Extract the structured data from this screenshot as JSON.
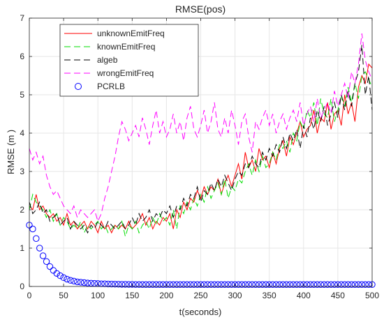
{
  "chart_data": {
    "type": "line",
    "title": "RMSE(pos)",
    "xlabel": "t(seconds)",
    "ylabel": "RMSE (m )",
    "xlim": [
      0,
      500
    ],
    "ylim": [
      0,
      7
    ],
    "xticks": [
      "0",
      "50",
      "100",
      "150",
      "200",
      "250",
      "300",
      "350",
      "400",
      "450",
      "500"
    ],
    "yticks": [
      "0",
      "1",
      "2",
      "3",
      "4",
      "5",
      "6",
      "7"
    ],
    "grid": true,
    "legend_position": "top-left",
    "x": [
      0,
      5,
      10,
      15,
      20,
      25,
      30,
      35,
      40,
      45,
      50,
      55,
      60,
      65,
      70,
      75,
      80,
      85,
      90,
      95,
      100,
      105,
      110,
      115,
      120,
      125,
      130,
      135,
      140,
      145,
      150,
      155,
      160,
      165,
      170,
      175,
      180,
      185,
      190,
      195,
      200,
      205,
      210,
      215,
      220,
      225,
      230,
      235,
      240,
      245,
      250,
      255,
      260,
      265,
      270,
      275,
      280,
      285,
      290,
      295,
      300,
      305,
      310,
      315,
      320,
      325,
      330,
      335,
      340,
      345,
      350,
      355,
      360,
      365,
      370,
      375,
      380,
      385,
      390,
      395,
      400,
      405,
      410,
      415,
      420,
      425,
      430,
      435,
      440,
      445,
      450,
      455,
      460,
      465,
      470,
      475,
      480,
      485,
      490,
      495,
      500
    ],
    "series": [
      {
        "name": "unknownEmitFreq",
        "color": "#ff0000",
        "dash": "solid",
        "marker": "none",
        "values": [
          2.1,
          2.0,
          2.4,
          2.0,
          2.1,
          1.9,
          1.8,
          1.9,
          1.7,
          1.8,
          1.6,
          1.9,
          1.6,
          1.7,
          1.5,
          1.6,
          1.7,
          1.5,
          1.7,
          1.6,
          1.4,
          1.7,
          1.5,
          1.6,
          1.4,
          1.6,
          1.5,
          1.6,
          1.5,
          1.7,
          1.5,
          1.6,
          1.7,
          1.9,
          1.6,
          1.8,
          1.5,
          1.7,
          1.6,
          1.8,
          1.7,
          1.9,
          1.5,
          2.0,
          1.8,
          2.2,
          2.0,
          2.3,
          2.2,
          2.5,
          2.3,
          2.6,
          2.4,
          2.6,
          2.5,
          2.8,
          2.4,
          2.7,
          2.9,
          2.6,
          2.9,
          3.2,
          2.8,
          3.5,
          3.1,
          3.3,
          3.0,
          3.6,
          3.3,
          3.4,
          3.1,
          3.5,
          3.2,
          3.6,
          3.8,
          3.4,
          3.9,
          3.7,
          4.0,
          4.3,
          3.9,
          4.1,
          4.2,
          4.6,
          4.0,
          4.4,
          4.3,
          4.8,
          4.1,
          4.5,
          4.6,
          4.2,
          5.0,
          4.5,
          4.8,
          4.3,
          5.2,
          5.5,
          5.3,
          5.8,
          5.7
        ]
      },
      {
        "name": "knownEmitFreq",
        "color": "#00dd00",
        "dash": "long-dash",
        "marker": "none",
        "values": [
          2.0,
          2.4,
          2.2,
          2.1,
          2.0,
          1.8,
          2.0,
          1.7,
          1.9,
          1.6,
          1.8,
          1.7,
          1.5,
          1.6,
          1.5,
          1.7,
          1.4,
          1.6,
          1.5,
          1.6,
          1.7,
          1.5,
          1.6,
          1.4,
          1.5,
          1.6,
          1.5,
          1.7,
          1.3,
          1.6,
          1.5,
          1.7,
          1.4,
          1.6,
          1.7,
          1.5,
          1.8,
          1.6,
          1.9,
          1.7,
          1.8,
          1.6,
          2.0,
          1.5,
          2.1,
          1.9,
          2.2,
          2.0,
          2.3,
          2.1,
          2.4,
          2.2,
          2.6,
          2.3,
          2.5,
          2.7,
          2.4,
          2.8,
          2.3,
          2.6,
          2.5,
          2.8,
          2.7,
          3.0,
          3.2,
          2.9,
          3.3,
          3.0,
          3.4,
          3.1,
          3.2,
          3.5,
          3.3,
          3.7,
          3.6,
          3.8,
          3.5,
          4.0,
          3.8,
          4.3,
          4.1,
          4.6,
          4.4,
          4.8,
          4.2,
          4.9,
          4.5,
          4.4,
          4.9,
          4.3,
          4.6,
          5.0,
          4.7,
          5.2,
          4.8,
          5.3,
          4.9,
          5.5,
          5.6,
          5.4,
          5.2
        ]
      },
      {
        "name": "algeb",
        "color": "#000000",
        "dash": "long-dash",
        "marker": "none",
        "values": [
          2.2,
          1.9,
          2.0,
          2.2,
          1.9,
          2.0,
          1.7,
          1.8,
          1.9,
          1.6,
          1.7,
          1.8,
          1.5,
          1.7,
          1.6,
          1.5,
          1.6,
          1.4,
          1.6,
          1.5,
          1.7,
          1.6,
          1.5,
          1.7,
          1.6,
          1.5,
          1.6,
          1.7,
          1.5,
          1.6,
          1.8,
          1.6,
          1.9,
          1.7,
          1.8,
          2.0,
          1.7,
          1.9,
          1.8,
          2.0,
          1.9,
          2.1,
          1.8,
          2.1,
          2.0,
          2.3,
          2.1,
          2.4,
          2.3,
          2.6,
          2.2,
          2.5,
          2.4,
          2.7,
          2.5,
          2.8,
          2.6,
          2.9,
          2.7,
          2.5,
          2.8,
          3.0,
          2.9,
          3.2,
          3.1,
          3.4,
          3.2,
          3.1,
          3.5,
          3.3,
          3.6,
          3.4,
          3.7,
          3.5,
          3.9,
          3.6,
          4.0,
          3.8,
          4.1,
          3.6,
          4.2,
          3.9,
          4.4,
          4.1,
          4.6,
          4.3,
          4.7,
          4.2,
          4.5,
          4.8,
          4.4,
          5.0,
          4.6,
          5.1,
          4.7,
          5.3,
          5.6,
          6.3,
          5.0,
          5.5,
          4.6
        ]
      },
      {
        "name": "wrongEmitFreq",
        "color": "#ff00ff",
        "dash": "long-dash",
        "marker": "none",
        "values": [
          3.6,
          3.3,
          3.5,
          3.2,
          3.4,
          2.9,
          2.6,
          2.4,
          2.5,
          2.3,
          2.1,
          2.0,
          1.9,
          2.1,
          1.8,
          2.0,
          1.9,
          1.8,
          1.9,
          2.0,
          1.7,
          1.9,
          2.3,
          2.6,
          3.0,
          3.4,
          3.9,
          4.3,
          4.1,
          3.8,
          4.0,
          4.2,
          3.9,
          4.4,
          4.1,
          3.7,
          4.2,
          4.6,
          4.0,
          4.3,
          3.9,
          4.1,
          4.5,
          4.0,
          4.3,
          3.8,
          4.4,
          4.7,
          4.1,
          3.9,
          4.2,
          4.6,
          4.0,
          4.3,
          4.8,
          4.1,
          3.9,
          4.4,
          4.0,
          4.6,
          4.2,
          3.7,
          4.3,
          4.5,
          3.9,
          3.5,
          4.3,
          4.1,
          4.4,
          4.6,
          4.2,
          4.5,
          4.0,
          4.3,
          4.5,
          4.1,
          4.4,
          4.6,
          4.3,
          4.8,
          4.2,
          4.5,
          4.7,
          4.3,
          4.9,
          4.4,
          4.6,
          4.8,
          4.5,
          5.1,
          4.7,
          5.0,
          5.3,
          4.9,
          5.6,
          5.3,
          5.8,
          6.6,
          5.9,
          5.6,
          5.4
        ]
      },
      {
        "name": "PCRLB",
        "color": "#0000ff",
        "dash": "none",
        "marker": "circle",
        "values": [
          1.6,
          1.5,
          1.25,
          1.0,
          0.8,
          0.65,
          0.52,
          0.42,
          0.34,
          0.28,
          0.23,
          0.19,
          0.16,
          0.14,
          0.12,
          0.11,
          0.1,
          0.09,
          0.085,
          0.08,
          0.075,
          0.07,
          0.068,
          0.065,
          0.062,
          0.06,
          0.058,
          0.056,
          0.055,
          0.054,
          0.053,
          0.052,
          0.051,
          0.05,
          0.05,
          0.05,
          0.05,
          0.05,
          0.05,
          0.05,
          0.05,
          0.05,
          0.05,
          0.05,
          0.05,
          0.05,
          0.05,
          0.05,
          0.05,
          0.05,
          0.05,
          0.05,
          0.05,
          0.05,
          0.05,
          0.05,
          0.05,
          0.05,
          0.05,
          0.05,
          0.05,
          0.05,
          0.05,
          0.05,
          0.05,
          0.05,
          0.05,
          0.05,
          0.05,
          0.05,
          0.05,
          0.05,
          0.05,
          0.05,
          0.05,
          0.05,
          0.05,
          0.05,
          0.05,
          0.05,
          0.05,
          0.05,
          0.05,
          0.05,
          0.05,
          0.05,
          0.05,
          0.05,
          0.05,
          0.05,
          0.05,
          0.05,
          0.05,
          0.05,
          0.05,
          0.05,
          0.05,
          0.05,
          0.05,
          0.05,
          0.05
        ]
      }
    ]
  }
}
